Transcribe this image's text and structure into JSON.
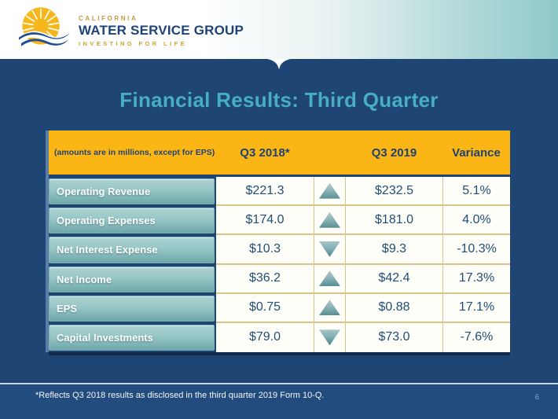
{
  "brand": {
    "name_line1": "CALIFORNIA",
    "name_line2": "WATER SERVICE GROUP",
    "tagline": "INVESTING FOR LIFE"
  },
  "slide": {
    "title": "Financial Results: Third Quarter",
    "footnote": "*Reflects Q3 2018 results as disclosed in the third quarter 2019 Form 10-Q.",
    "page_number": "6"
  },
  "table": {
    "note": "(amounts are in millions, except for EPS)",
    "columns": [
      "Q3 2018*",
      "Q3 2019",
      "Variance"
    ],
    "rows": [
      {
        "label": "Operating Revenue",
        "q3_2018": "$221.3",
        "trend": "up",
        "q3_2019": "$232.5",
        "variance": "5.1%"
      },
      {
        "label": "Operating Expenses",
        "q3_2018": "$174.0",
        "trend": "up",
        "q3_2019": "$181.0",
        "variance": "4.0%"
      },
      {
        "label": "Net Interest Expense",
        "q3_2018": "$10.3",
        "trend": "down",
        "q3_2019": "$9.3",
        "variance": "-10.3%"
      },
      {
        "label": "Net Income",
        "q3_2018": "$36.2",
        "trend": "up",
        "q3_2019": "$42.4",
        "variance": "17.3%"
      },
      {
        "label": "EPS",
        "q3_2018": "$0.75",
        "trend": "up",
        "q3_2019": "$0.88",
        "variance": "17.1%"
      },
      {
        "label": "Capital Investments",
        "q3_2018": "$79.0",
        "trend": "down",
        "q3_2019": "$73.0",
        "variance": "-7.6%"
      }
    ]
  },
  "colors": {
    "body_blue": "#1E4574",
    "header_yellow": "#FBB515",
    "title_teal": "#47AEC4",
    "navy_text": "#1F4373",
    "teal_band_right": "#8FC9CA",
    "row_divider_tan": "#D9C489",
    "chip_teal_top": "#ABD2D2",
    "chip_teal_bottom": "#6FA8AA"
  }
}
